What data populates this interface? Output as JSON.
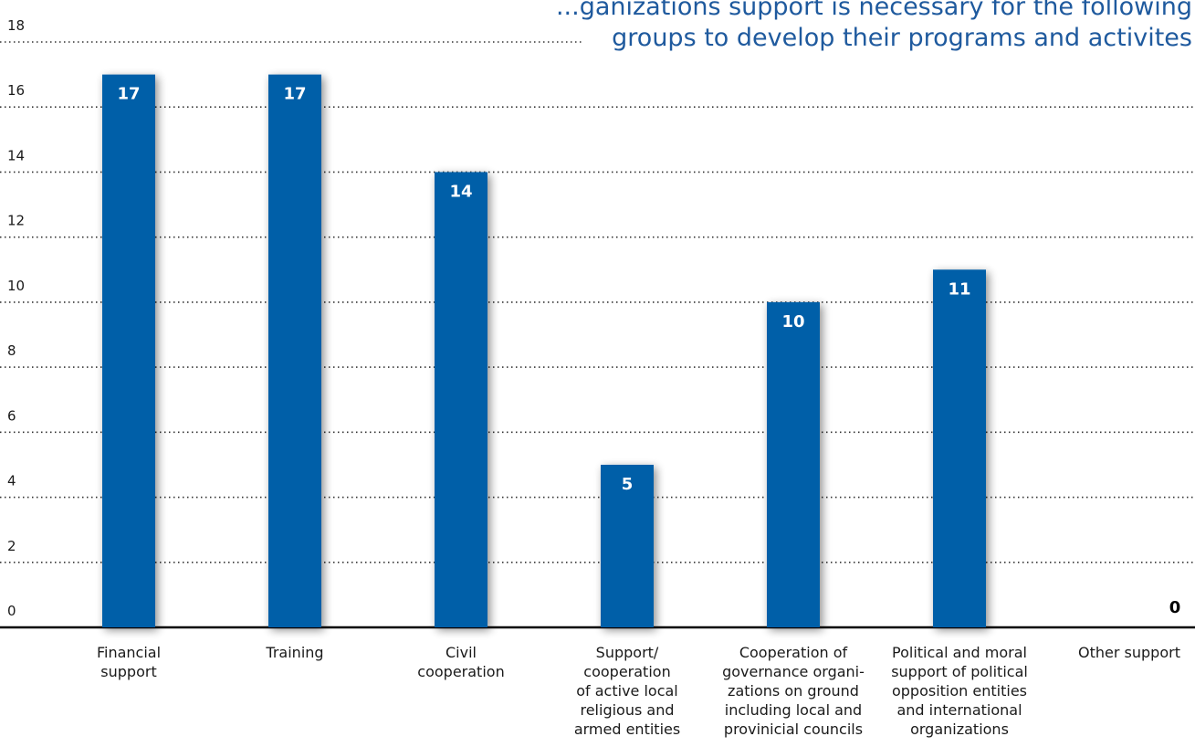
{
  "chart_data": {
    "type": "bar",
    "title_lines": [
      "...ganizations support is necessary for the following",
      "groups to develop their programs and activites"
    ],
    "categories": [
      [
        "Financial",
        "support"
      ],
      [
        "Training"
      ],
      [
        "Civil",
        "cooperation"
      ],
      [
        "Support/",
        "cooperation",
        "of active local",
        "religious and",
        "armed entities"
      ],
      [
        "Cooperation of",
        "governance organi-",
        "zations on ground",
        "including local and",
        "provinicial councils"
      ],
      [
        "Political and moral",
        "support of political",
        "opposition entities",
        "and international",
        "organizations"
      ],
      [
        "Other support"
      ]
    ],
    "values": [
      17,
      17,
      14,
      5,
      10,
      11,
      0
    ],
    "yticks": [
      "0",
      "2",
      "4",
      "6",
      "8",
      "10",
      "12",
      "14",
      "16",
      "18"
    ],
    "ylim": [
      0,
      18
    ],
    "grid": true,
    "colors": {
      "bar": "#005fa8",
      "bar_label": "#ffffff",
      "zero_label": "#000000",
      "title": "#1f5a9e",
      "grid": "#333333"
    }
  }
}
